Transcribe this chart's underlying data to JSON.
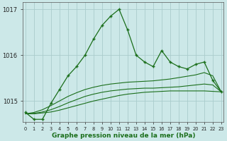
{
  "xlabel": "Graphe pression niveau de la mer (hPa)",
  "background_color": "#cce8e8",
  "grid_color": "#aacccc",
  "line_color": "#1a6e1a",
  "x_hours": [
    0,
    1,
    2,
    3,
    4,
    5,
    6,
    7,
    8,
    9,
    10,
    11,
    12,
    13,
    14,
    15,
    16,
    17,
    18,
    19,
    20,
    21,
    22,
    23
  ],
  "main_line": [
    1014.75,
    1014.6,
    1014.6,
    1014.95,
    1015.25,
    1015.55,
    1015.75,
    1016.0,
    1016.35,
    1016.65,
    1016.85,
    1017.0,
    1016.55,
    1016.0,
    1015.85,
    1015.75,
    1016.1,
    1015.85,
    1015.75,
    1015.7,
    1015.8,
    1015.85,
    1015.45,
    1015.2
  ],
  "trend_line1": [
    1014.72,
    1014.72,
    1014.74,
    1014.76,
    1014.8,
    1014.85,
    1014.9,
    1014.95,
    1015.0,
    1015.04,
    1015.08,
    1015.12,
    1015.15,
    1015.17,
    1015.19,
    1015.2,
    1015.21,
    1015.22,
    1015.22,
    1015.22,
    1015.22,
    1015.22,
    1015.21,
    1015.2
  ],
  "trend_line2": [
    1014.72,
    1014.73,
    1014.76,
    1014.81,
    1014.88,
    1014.96,
    1015.03,
    1015.1,
    1015.15,
    1015.19,
    1015.22,
    1015.24,
    1015.26,
    1015.27,
    1015.28,
    1015.28,
    1015.29,
    1015.3,
    1015.31,
    1015.33,
    1015.35,
    1015.37,
    1015.35,
    1015.2
  ],
  "trend_line3": [
    1014.72,
    1014.75,
    1014.81,
    1014.9,
    1015.0,
    1015.1,
    1015.18,
    1015.25,
    1015.3,
    1015.34,
    1015.37,
    1015.39,
    1015.41,
    1015.42,
    1015.43,
    1015.44,
    1015.46,
    1015.48,
    1015.51,
    1015.54,
    1015.57,
    1015.62,
    1015.55,
    1015.2
  ],
  "ylim": [
    1014.55,
    1017.15
  ],
  "yticks": [
    1015,
    1016,
    1017
  ],
  "xlim": [
    -0.3,
    23.3
  ]
}
